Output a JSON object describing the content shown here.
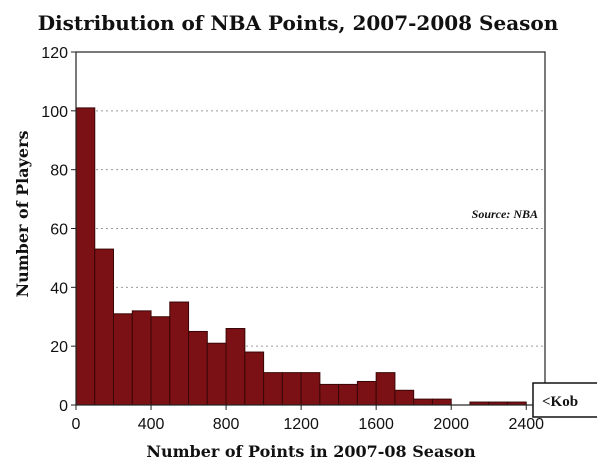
{
  "chart_data": {
    "type": "bar",
    "title": "Distribution of NBA Points, 2007-2008 Season",
    "xlabel": "Number of Points in 2007-08 Season",
    "ylabel": "Number of Players",
    "source_note": "Source: NBA",
    "callout": "<Kob",
    "bin_width": 100,
    "bin_starts": [
      0,
      100,
      200,
      300,
      400,
      500,
      600,
      700,
      800,
      900,
      1000,
      1100,
      1200,
      1300,
      1400,
      1500,
      1600,
      1700,
      1800,
      1900,
      2000,
      2100,
      2200,
      2300
    ],
    "values": [
      101,
      53,
      31,
      32,
      30,
      35,
      25,
      21,
      26,
      18,
      11,
      11,
      11,
      7,
      7,
      8,
      11,
      5,
      2,
      2,
      0,
      1,
      1,
      1
    ],
    "xlim": [
      0,
      2500
    ],
    "ylim": [
      0,
      120
    ],
    "x_ticks": [
      0,
      400,
      800,
      1200,
      1600,
      2000,
      2400
    ],
    "y_ticks": [
      0,
      20,
      40,
      60,
      80,
      100,
      120
    ],
    "grid": "horizontal dotted",
    "colors": {
      "bar": "#7b1114",
      "bar_edge": "#3a0607"
    }
  }
}
